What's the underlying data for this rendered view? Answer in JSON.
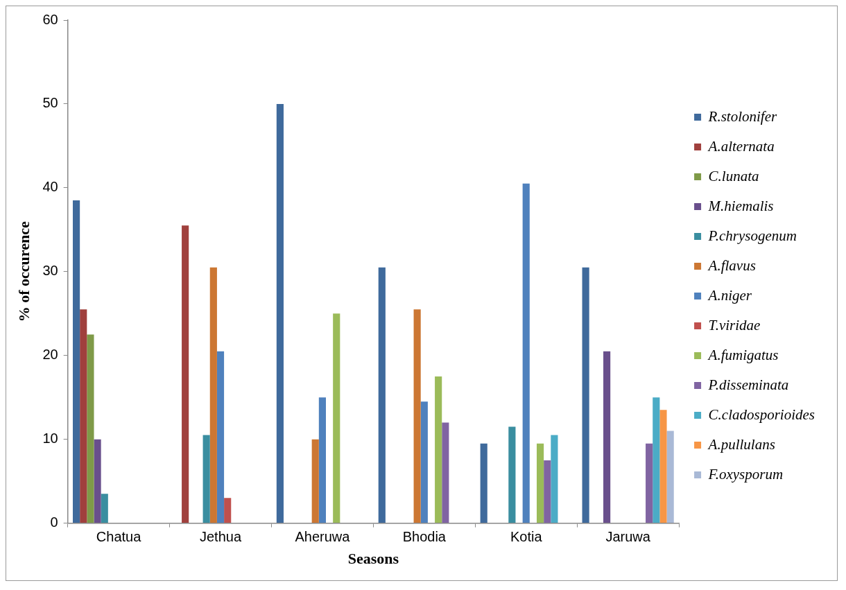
{
  "chart_data": {
    "type": "bar",
    "xlabel": "Seasons",
    "ylabel": "% of occurence",
    "categories": [
      "Chatua",
      "Jethua",
      "Aheruwa",
      "Bhodia",
      "Kotia",
      "Jaruwa"
    ],
    "ylim": [
      0,
      60
    ],
    "yticks": [
      0,
      10,
      20,
      30,
      40,
      50,
      60
    ],
    "grid": false,
    "legend": "right",
    "series": [
      {
        "name": "R.stolonifer",
        "color": "#3f6a9c",
        "values": [
          38.5,
          0,
          50,
          30.5,
          9.5,
          30.5
        ]
      },
      {
        "name": "A.alternata",
        "color": "#a0403d",
        "values": [
          25.5,
          35.5,
          0,
          0,
          0,
          0
        ]
      },
      {
        "name": "C.lunata",
        "color": "#7f9a48",
        "values": [
          22.5,
          0,
          0,
          0,
          0,
          0
        ]
      },
      {
        "name": "M.hiemalis",
        "color": "#694f8c",
        "values": [
          10,
          0,
          0,
          0,
          0,
          20.5
        ]
      },
      {
        "name": "P.chrysogenum",
        "color": "#3a8ea0",
        "values": [
          3.5,
          10.5,
          0,
          0,
          11.5,
          0
        ]
      },
      {
        "name": "A.flavus",
        "color": "#cc7733",
        "values": [
          0,
          30.5,
          10,
          25.5,
          0,
          0
        ]
      },
      {
        "name": "A.niger",
        "color": "#4f81bd",
        "values": [
          0,
          20.5,
          15,
          14.5,
          40.5,
          0
        ]
      },
      {
        "name": "T.viridae",
        "color": "#c0504d",
        "values": [
          0,
          3,
          0,
          0,
          0,
          0
        ]
      },
      {
        "name": "A.fumigatus",
        "color": "#9bbb59",
        "values": [
          0,
          0,
          25,
          17.5,
          9.5,
          0
        ]
      },
      {
        "name": "P.disseminata",
        "color": "#8064a2",
        "values": [
          0,
          0,
          0,
          12,
          7.5,
          9.5
        ]
      },
      {
        "name": "C.cladosporioides",
        "color": "#4bacc6",
        "values": [
          0,
          0,
          0,
          0,
          10.5,
          15
        ]
      },
      {
        "name": "A.pullulans",
        "color": "#f79646",
        "values": [
          0,
          0,
          0,
          0,
          0,
          13.5
        ]
      },
      {
        "name": "F.oxysporum",
        "color": "#a9b9d6",
        "values": [
          0,
          0,
          0,
          0,
          0,
          11
        ]
      }
    ]
  }
}
